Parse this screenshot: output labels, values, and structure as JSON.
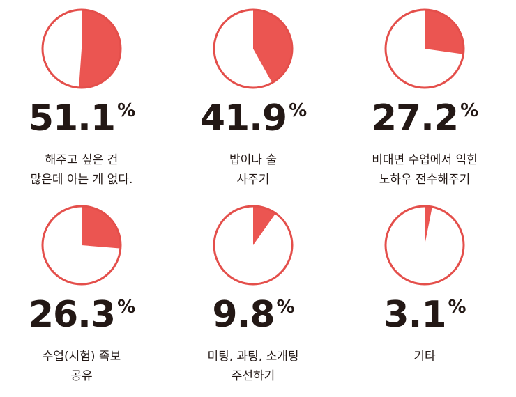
{
  "chart_data": {
    "type": "pie",
    "colors": {
      "filled": "#eb5551",
      "empty": "#ffffff",
      "outline": "#e44f4b",
      "text": "#231815"
    },
    "items": [
      {
        "value": 51.1,
        "display": "51.1",
        "unit": "%",
        "label_lines": [
          "해주고 싶은 건",
          "많은데 아는 게 없다."
        ]
      },
      {
        "value": 41.9,
        "display": "41.9",
        "unit": "%",
        "label_lines": [
          "밥이나 술",
          "사주기"
        ]
      },
      {
        "value": 27.2,
        "display": "27.2",
        "unit": "%",
        "label_lines": [
          "비대면 수업에서 익힌",
          "노하우 전수해주기"
        ]
      },
      {
        "value": 26.3,
        "display": "26.3",
        "unit": "%",
        "label_lines": [
          "수업(시험) 족보",
          "공유"
        ]
      },
      {
        "value": 9.8,
        "display": "9.8",
        "unit": "%",
        "label_lines": [
          "미팅, 과팅, 소개팅",
          "주선하기"
        ]
      },
      {
        "value": 3.1,
        "display": "3.1",
        "unit": "%",
        "label_lines": [
          "기타"
        ]
      }
    ]
  }
}
